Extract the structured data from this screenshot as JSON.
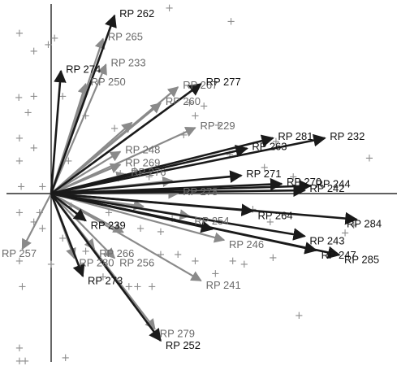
{
  "chart_data": {
    "type": "scatter",
    "subtype": "biplot",
    "xlim": [
      -1,
      6
    ],
    "ylim": [
      -3,
      3
    ],
    "arrow_color_dark": "#1a1a1a",
    "arrow_color_light": "#8a8a8a",
    "marker_color": "#8c8c8c",
    "marker_symbol": "+",
    "vectors": [
      {
        "label": "RP 262",
        "x": 1.1,
        "y": 2.76,
        "shade": "dark",
        "show_label": true
      },
      {
        "label": "RP 265",
        "x": 0.9,
        "y": 2.4,
        "shade": "light",
        "show_label": true
      },
      {
        "label": "RP 233",
        "x": 0.95,
        "y": 2.0,
        "shade": "light",
        "show_label": true
      },
      {
        "label": "RP 250",
        "x": 0.6,
        "y": 1.7,
        "shade": "light",
        "show_label": true
      },
      {
        "label": "RP 277",
        "x": 2.6,
        "y": 1.7,
        "shade": "dark",
        "show_label": true
      },
      {
        "label": "RP 267",
        "x": 2.2,
        "y": 1.65,
        "shade": "light",
        "show_label": true
      },
      {
        "label": "RP 229",
        "x": 2.5,
        "y": 1.02,
        "shade": "light",
        "show_label": true
      },
      {
        "label": "RP 281",
        "x": 3.85,
        "y": 0.86,
        "shade": "dark",
        "show_label": true
      },
      {
        "label": "RP 232",
        "x": 4.75,
        "y": 0.86,
        "shade": "dark",
        "show_label": true
      },
      {
        "label": "RP 263",
        "x": 3.4,
        "y": 0.7,
        "shade": "dark",
        "show_label": true
      },
      {
        "label": "RP 248",
        "x": 1.2,
        "y": 0.65,
        "shade": "light",
        "show_label": true
      },
      {
        "label": "RP 276",
        "x": 1.3,
        "y": 0.3,
        "shade": "light",
        "show_label": true
      },
      {
        "label": "RP 271",
        "x": 3.3,
        "y": 0.28,
        "shade": "dark",
        "show_label": true
      },
      {
        "label": "RP 270",
        "x": 4.0,
        "y": 0.15,
        "shade": "dark",
        "show_label": true
      },
      {
        "label": "RP 244",
        "x": 4.5,
        "y": 0.12,
        "shade": "dark",
        "show_label": true
      },
      {
        "label": "RP 242",
        "x": 4.4,
        "y": 0.05,
        "shade": "dark",
        "show_label": true
      },
      {
        "label": "RP 278",
        "x": 2.2,
        "y": 0.0,
        "shade": "light",
        "show_label": true
      },
      {
        "label": "RP 264",
        "x": 3.5,
        "y": -0.27,
        "shade": "dark",
        "show_label": true
      },
      {
        "label": "RP 254",
        "x": 2.4,
        "y": -0.35,
        "shade": "light",
        "show_label": true
      },
      {
        "label": "RP 284",
        "x": 5.3,
        "y": -0.4,
        "shade": "dark",
        "show_label": true
      },
      {
        "label": "RP 243",
        "x": 4.4,
        "y": -0.66,
        "shade": "dark",
        "show_label": true
      },
      {
        "label": "RP 246",
        "x": 3.0,
        "y": -0.72,
        "shade": "light",
        "show_label": true
      },
      {
        "label": "RP 247",
        "x": 4.6,
        "y": -0.88,
        "shade": "dark",
        "show_label": true
      },
      {
        "label": "RP 285",
        "x": 5.0,
        "y": -0.95,
        "shade": "dark",
        "show_label": true
      },
      {
        "label": "RP 239",
        "x": 0.6,
        "y": -0.42,
        "shade": "dark",
        "show_label": true
      },
      {
        "label": "RP 266",
        "x": 0.75,
        "y": -0.86,
        "shade": "light",
        "show_label": true
      },
      {
        "label": "RP 256",
        "x": 1.1,
        "y": -1.0,
        "shade": "light",
        "show_label": true
      },
      {
        "label": "RP 273",
        "x": 0.55,
        "y": -1.28,
        "shade": "dark",
        "show_label": true
      },
      {
        "label": "RP 241",
        "x": 2.6,
        "y": -1.35,
        "shade": "light",
        "show_label": true
      },
      {
        "label": "RP 279",
        "x": 1.8,
        "y": -2.1,
        "shade": "light",
        "show_label": true
      },
      {
        "label": "RP 252",
        "x": 1.9,
        "y": -2.28,
        "shade": "dark",
        "show_label": true
      },
      {
        "label": "RP 257",
        "x": -0.5,
        "y": -0.86,
        "shade": "light",
        "show_label": true
      },
      {
        "label": "RP 280",
        "x": 0.4,
        "y": -1.0,
        "shade": "light",
        "show_label": true
      },
      {
        "label": "RP 274",
        "x": 0.17,
        "y": 1.9,
        "shade": "dark",
        "show_label": true
      },
      {
        "label": "RP 260",
        "x": 1.9,
        "y": 1.4,
        "shade": "light",
        "show_label": true
      },
      {
        "label": "RP 269",
        "x": 1.2,
        "y": 0.45,
        "shade": "light",
        "show_label": true
      },
      {
        "label": "",
        "x": 2.1,
        "y": 0.2,
        "shade": "light",
        "show_label": false
      },
      {
        "label": "",
        "x": 1.6,
        "y": -0.2,
        "shade": "light",
        "show_label": false
      },
      {
        "label": "",
        "x": 2.8,
        "y": -0.55,
        "shade": "dark",
        "show_label": false
      },
      {
        "label": "",
        "x": 1.4,
        "y": 1.1,
        "shade": "light",
        "show_label": false
      },
      {
        "label": "",
        "x": 1.25,
        "y": -0.6,
        "shade": "light",
        "show_label": false
      }
    ],
    "points": [
      [
        2.05,
        2.87
      ],
      [
        3.12,
        2.66
      ],
      [
        -0.55,
        2.48
      ],
      [
        -0.3,
        2.2
      ],
      [
        -0.05,
        2.3
      ],
      [
        0.06,
        2.4
      ],
      [
        -0.56,
        1.48
      ],
      [
        -0.3,
        1.5
      ],
      [
        0.2,
        1.5
      ],
      [
        -0.4,
        1.25
      ],
      [
        0.6,
        1.2
      ],
      [
        1.1,
        1.0
      ],
      [
        -0.55,
        0.85
      ],
      [
        -0.3,
        0.7
      ],
      [
        -0.55,
        0.5
      ],
      [
        -0.52,
        0.1
      ],
      [
        -0.15,
        0.1
      ],
      [
        2.4,
        1.4
      ],
      [
        2.5,
        1.2
      ],
      [
        2.3,
        0.9
      ],
      [
        2.65,
        1.35
      ],
      [
        2.9,
        1.05
      ],
      [
        3.9,
        0.8
      ],
      [
        5.52,
        0.54
      ],
      [
        -0.55,
        -0.3
      ],
      [
        -0.3,
        -0.45
      ],
      [
        -0.15,
        -0.55
      ],
      [
        0.35,
        -0.2
      ],
      [
        0.2,
        -0.7
      ],
      [
        0.6,
        -0.9
      ],
      [
        -0.55,
        -1.05
      ],
      [
        0.0,
        -1.1
      ],
      [
        -0.5,
        -1.45
      ],
      [
        1.35,
        -1.45
      ],
      [
        1.5,
        -1.45
      ],
      [
        1.75,
        -1.45
      ],
      [
        2.2,
        -0.95
      ],
      [
        2.5,
        -1.05
      ],
      [
        3.15,
        -1.05
      ],
      [
        3.35,
        -1.1
      ],
      [
        3.85,
        -1.0
      ],
      [
        3.8,
        -0.45
      ],
      [
        5.1,
        -0.62
      ],
      [
        5.25,
        -0.5
      ],
      [
        4.3,
        -1.9
      ],
      [
        1.55,
        -0.55
      ],
      [
        1.9,
        -0.6
      ],
      [
        2.1,
        -0.4
      ],
      [
        1.0,
        -0.3
      ],
      [
        1.2,
        0.3
      ],
      [
        1.45,
        0.35
      ],
      [
        1.7,
        0.25
      ],
      [
        3.1,
        0.6
      ],
      [
        0.3,
        0.5
      ],
      [
        -0.55,
        -2.4
      ],
      [
        -0.55,
        -2.6
      ],
      [
        -0.45,
        -2.6
      ],
      [
        0.25,
        -2.55
      ],
      [
        4.2,
        0.25
      ],
      [
        3.7,
        0.4
      ],
      [
        -0.2,
        -0.3
      ],
      [
        0.9,
        -1.3
      ],
      [
        1.9,
        -0.95
      ],
      [
        2.85,
        -1.25
      ],
      [
        3.5,
        -0.25
      ]
    ]
  }
}
